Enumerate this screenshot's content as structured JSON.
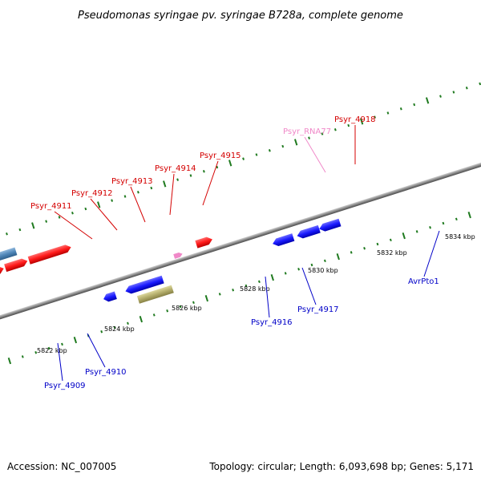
{
  "title": "Pseudomonas syringae pv. syringae B728a, complete genome",
  "footer": {
    "accession": "Accession: NC_007005",
    "summary": "Topology: circular; Length: 6,093,698 bp; Genes: 5,171"
  },
  "colors": {
    "background": "#ffffff",
    "axis": "#8a8a8a",
    "tick": "#1f7a1f",
    "red_gene": "#ff1a1a",
    "blue_gene": "#1a1aff",
    "steel_gene": "#4f86b8",
    "olive_gene": "#b3ad6b",
    "rna_gene": "#f088c8",
    "label_red": "#d40000",
    "label_blue": "#0000c8",
    "label_pink": "#f088c8"
  },
  "kbp_markers": [
    {
      "label": "5822 kbp"
    },
    {
      "label": "5824 kbp"
    },
    {
      "label": "5826 kbp"
    },
    {
      "label": "5828 kbp"
    },
    {
      "label": "5830 kbp"
    },
    {
      "label": "5832 kbp"
    },
    {
      "label": "5834 kbp"
    }
  ],
  "gene_labels": [
    {
      "name": "Psyr_4911",
      "strand": "forward",
      "color": "red"
    },
    {
      "name": "Psyr_4912",
      "strand": "forward",
      "color": "red"
    },
    {
      "name": "Psyr_4913",
      "strand": "forward",
      "color": "red"
    },
    {
      "name": "Psyr_4914",
      "strand": "forward",
      "color": "red"
    },
    {
      "name": "Psyr_4915",
      "strand": "forward",
      "color": "red"
    },
    {
      "name": "Psyr_RNA77",
      "strand": "forward",
      "color": "pink"
    },
    {
      "name": "Psyr_4918",
      "strand": "forward",
      "color": "red"
    },
    {
      "name": "Psyr_4909",
      "strand": "reverse",
      "color": "blue"
    },
    {
      "name": "Psyr_4910",
      "strand": "reverse",
      "color": "blue"
    },
    {
      "name": "Psyr_4916",
      "strand": "reverse",
      "color": "blue"
    },
    {
      "name": "Psyr_4917",
      "strand": "reverse",
      "color": "blue"
    },
    {
      "name": "AvrPto1",
      "strand": "reverse",
      "color": "blue"
    }
  ]
}
